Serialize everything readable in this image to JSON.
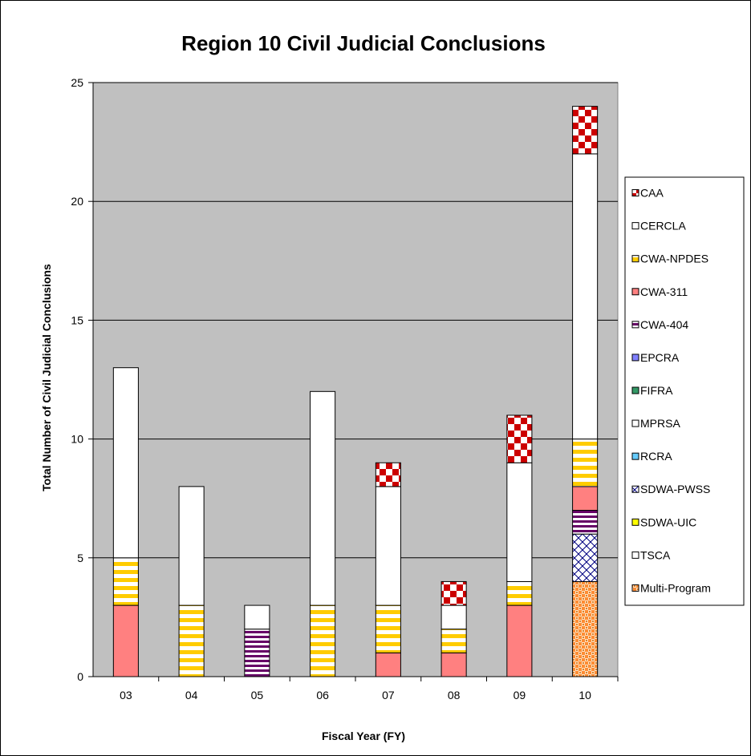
{
  "chart_data": {
    "type": "bar",
    "stacked": true,
    "title": "Region 10 Civil Judicial Conclusions",
    "xlabel": "Fiscal Year (FY)",
    "ylabel": "Total Number of Civil Judicial Conclusions",
    "categories": [
      "03",
      "04",
      "05",
      "06",
      "07",
      "08",
      "09",
      "10"
    ],
    "ylim": [
      0,
      25
    ],
    "yticks": [
      "0",
      "5",
      "10",
      "15",
      "20",
      "25"
    ],
    "grid": true,
    "legend_position": "right",
    "plot_background": "#c0c0c0",
    "series": [
      {
        "name": "Multi-Program",
        "pattern": "multi",
        "values": [
          0,
          0,
          0,
          0,
          0,
          0,
          0,
          4
        ]
      },
      {
        "name": "SDWA-PWSS",
        "pattern": "crosshatch",
        "values": [
          0,
          0,
          0,
          0,
          0,
          0,
          0,
          2
        ]
      },
      {
        "name": "CWA-404",
        "pattern": "purple-stripes",
        "values": [
          0,
          0,
          2,
          0,
          0,
          0,
          0,
          1
        ]
      },
      {
        "name": "CWA-311",
        "pattern": "salmon",
        "values": [
          3,
          0,
          0,
          0,
          1,
          1,
          3,
          1
        ]
      },
      {
        "name": "CWA-NPDES",
        "pattern": "yellow-stripes",
        "values": [
          2,
          3,
          0,
          3,
          2,
          1,
          1,
          2
        ]
      },
      {
        "name": "CERCLA",
        "pattern": "white",
        "values": [
          8,
          5,
          1,
          9,
          5,
          1,
          5,
          12
        ]
      },
      {
        "name": "CAA",
        "pattern": "red-check",
        "values": [
          0,
          0,
          0,
          0,
          1,
          1,
          2,
          2
        ]
      }
    ],
    "legend": [
      {
        "label": "CAA",
        "pattern": "red-check"
      },
      {
        "label": "CERCLA",
        "pattern": "white"
      },
      {
        "label": "CWA-NPDES",
        "pattern": "yellow-stripes"
      },
      {
        "label": "CWA-311",
        "pattern": "salmon"
      },
      {
        "label": "CWA-404",
        "pattern": "purple-stripes"
      },
      {
        "label": "EPCRA",
        "pattern": "blue"
      },
      {
        "label": "FIFRA",
        "pattern": "green"
      },
      {
        "label": "MPRSA",
        "pattern": "white"
      },
      {
        "label": "RCRA",
        "pattern": "lightblue"
      },
      {
        "label": "SDWA-PWSS",
        "pattern": "crosshatch"
      },
      {
        "label": "SDWA-UIC",
        "pattern": "yellow-solid"
      },
      {
        "label": "TSCA",
        "pattern": "white"
      },
      {
        "label": "Multi-Program",
        "pattern": "multi"
      }
    ]
  }
}
